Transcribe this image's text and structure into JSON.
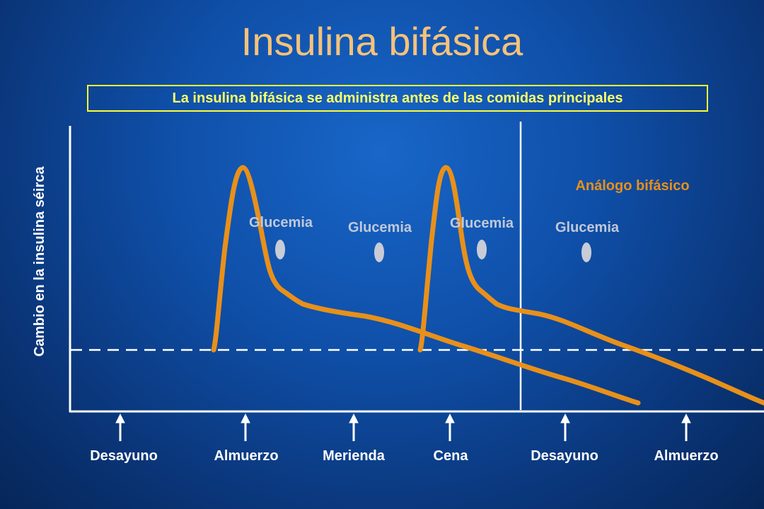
{
  "title": "Insulina bifásica",
  "subtitle": "La insulina bifásica se administra antes de las comidas principales",
  "y_axis_label": "Cambio en la insulina séirca",
  "series_label": "Análogo bifásico",
  "glucose_labels": [
    "Glucemia",
    "Glucemia",
    "Glucemia",
    "Glucemia"
  ],
  "meals": [
    "Desayuno",
    "Almuerzo",
    "Merienda",
    "Cena",
    "Desayuno",
    "Almuerzo"
  ],
  "colors": {
    "curve": "#e8901a",
    "title": "#f5c27a",
    "subtitle": "#ffff66",
    "label_grey": "#c0c8d8",
    "axis": "#ffffff"
  },
  "icons": {
    "glucose_marker": "ellipse-drop-icon",
    "meal_marker": "up-arrow-icon"
  }
}
